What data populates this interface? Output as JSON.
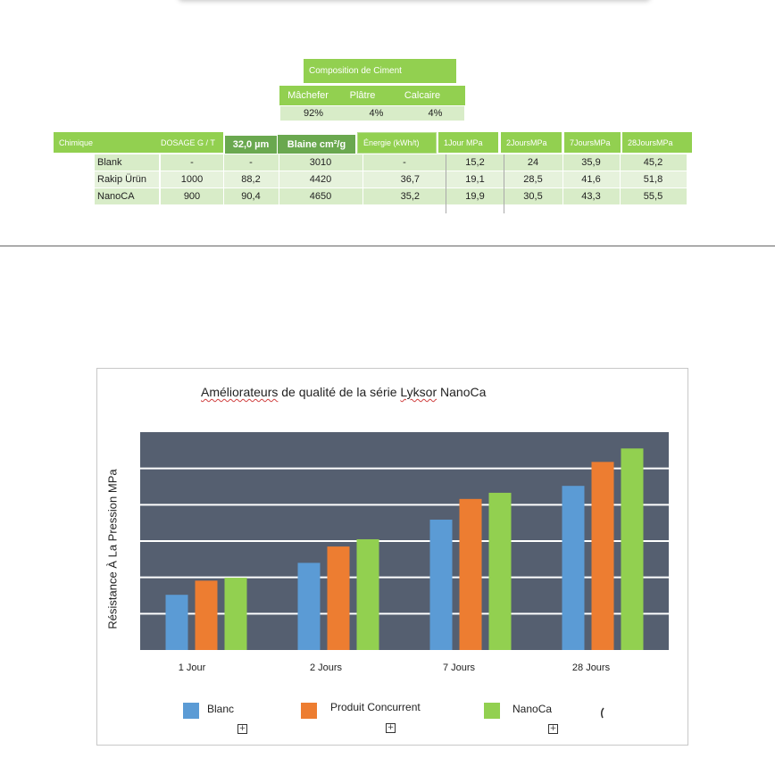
{
  "composition": {
    "title": "Composition de Ciment",
    "headers": [
      "Mâchefer",
      "Plâtre",
      "Calcaire"
    ],
    "values": [
      "92%",
      "4%",
      "4%"
    ]
  },
  "table": {
    "headers": [
      "Chimique",
      "DOSAGE G / T",
      "32,0 µm",
      "Blaine cm²/g",
      "Énergie (kWh/t)",
      "1Jour MPa",
      "2JoursMPa",
      "7JoursMPa",
      "28JoursMPa"
    ],
    "rows": [
      [
        "Blank",
        "-",
        "-",
        "3010",
        "-",
        "15,2",
        "24",
        "35,9",
        "45,2"
      ],
      [
        "Rakip Ürün",
        "1000",
        "88,2",
        "4420",
        "36,7",
        "19,1",
        "28,5",
        "41,6",
        "51,8"
      ],
      [
        "NanoCA",
        "900",
        "90,4",
        "4650",
        "35,2",
        "19,9",
        "30,5",
        "43,3",
        "55,5"
      ]
    ]
  },
  "chart_data": {
    "type": "bar",
    "title": "Améliorateurs de qualité de la série Lyksor NanoCa",
    "ylabel": "Résistance À La Pression MPa",
    "categories": [
      "1 Jour",
      "2 Jours",
      "7 Jours",
      "28 Jours"
    ],
    "series": [
      {
        "name": "Blanc",
        "color": "#5b9bd5",
        "values": [
          15.2,
          24,
          35.9,
          45.2
        ]
      },
      {
        "name": "Produit Concurrent",
        "color": "#ed7d31",
        "values": [
          19.1,
          28.5,
          41.6,
          51.8
        ]
      },
      {
        "name": "NanoCa",
        "color": "#92d050",
        "values": [
          19.9,
          30.5,
          43.3,
          55.5
        ]
      }
    ],
    "ylim": [
      0,
      60
    ],
    "grid": true,
    "plot_background": "#555f70",
    "legend_position": "bottom"
  }
}
